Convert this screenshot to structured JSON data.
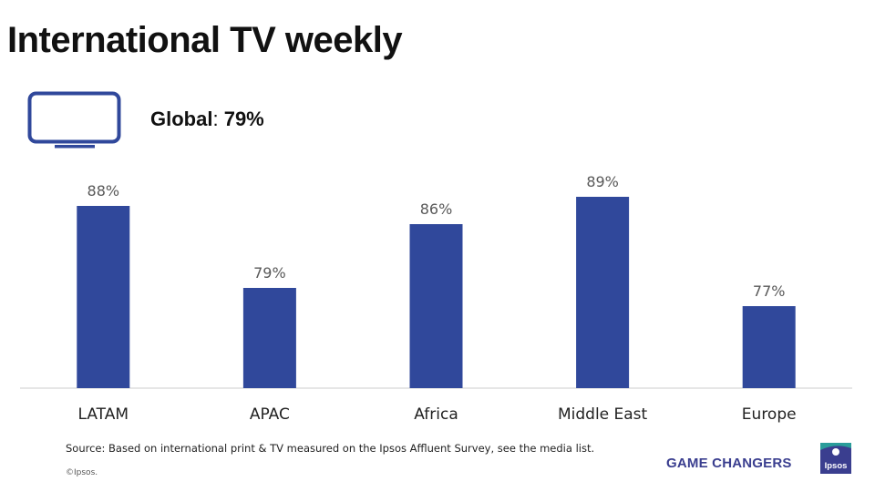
{
  "title": "International TV weekly",
  "global": {
    "label": "Global",
    "sep": ":",
    "value": "79%"
  },
  "icons": {
    "tv": "tv-monitor-icon",
    "logo": "ipsos-logo"
  },
  "colors": {
    "bar": "#30489b",
    "axis": "#cccccc",
    "label": "#595959",
    "brand": "#3a3e8f",
    "logo_teal": "#2a9d9a"
  },
  "chart_data": {
    "type": "bar",
    "categories": [
      "LATAM",
      "APAC",
      "Africa",
      "Middle East",
      "Europe"
    ],
    "values": [
      88,
      79,
      86,
      89,
      77
    ],
    "value_suffix": "%",
    "title": "",
    "xlabel": "",
    "ylabel": "",
    "ylim": [
      68,
      92
    ],
    "grid": false,
    "legend": "none"
  },
  "footer": {
    "source": "Source: Based on international print & TV measured on the Ipsos Affluent Survey, see the media list.",
    "copyright": "©Ipsos.",
    "brand": "GAME CHANGERS",
    "logo_text": "Ipsos"
  }
}
